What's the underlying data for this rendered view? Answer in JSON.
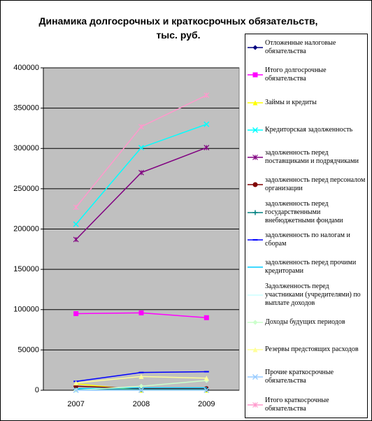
{
  "chart_data": {
    "type": "line",
    "title": "Динамика долгосрочных и краткосрочных обязательств, тыс. руб.",
    "categories": [
      "2007",
      "2008",
      "2009"
    ],
    "ylim": [
      0,
      400000
    ],
    "yticks": [
      0,
      50000,
      100000,
      150000,
      200000,
      250000,
      300000,
      350000,
      400000
    ],
    "grid": true,
    "legend": "right",
    "series": [
      {
        "name": "Отложенные налоговые обязательства",
        "color": "#000080",
        "marker": "diamond",
        "values": [
          500,
          500,
          500
        ]
      },
      {
        "name": "Итого долгосрочные обязательства",
        "color": "#ff00ff",
        "marker": "square",
        "values": [
          95000,
          96000,
          90000
        ]
      },
      {
        "name": "Займы и кредиты",
        "color": "#ffff00",
        "marker": "triangle",
        "values": [
          8000,
          0,
          0
        ]
      },
      {
        "name": "Кредиторская задолженность",
        "color": "#00ffff",
        "marker": "x",
        "values": [
          206000,
          301000,
          330000
        ]
      },
      {
        "name": "задолженность перед поставщиками и подрядчиками",
        "color": "#800080",
        "marker": "star",
        "values": [
          187000,
          270000,
          301000
        ]
      },
      {
        "name": "задолженность перед персоналом организации",
        "color": "#800000",
        "marker": "circle",
        "values": [
          5000,
          2000,
          2000
        ]
      },
      {
        "name": "задолженность перед государственными внебюджетными фондами",
        "color": "#008080",
        "marker": "plus",
        "values": [
          1000,
          1000,
          1000
        ]
      },
      {
        "name": "задолженность по налогам и сборам",
        "color": "#0000ff",
        "marker": "dash",
        "values": [
          11000,
          22000,
          23000
        ]
      },
      {
        "name": "задолженность перед прочими кредиторами",
        "color": "#00ccff",
        "marker": "none",
        "values": [
          2000,
          3000,
          3000
        ]
      },
      {
        "name": "Задолженность перед участниками (учредителями) по выплате доходов",
        "color": "#ccffff",
        "marker": "none",
        "values": [
          0,
          0,
          0
        ]
      },
      {
        "name": "Доходы будущих периодов",
        "color": "#ccffcc",
        "marker": "diamond",
        "values": [
          0,
          5000,
          12000
        ]
      },
      {
        "name": "Резервы предстоящих расходов",
        "color": "#ffff99",
        "marker": "triangle",
        "values": [
          9000,
          17000,
          15000
        ]
      },
      {
        "name": "Прочие краткосрочные обязательства",
        "color": "#99ccff",
        "marker": "x",
        "values": [
          0,
          0,
          0
        ]
      },
      {
        "name": "Итого краткосрочные обязательства",
        "color": "#ff99cc",
        "marker": "star",
        "values": [
          227000,
          327000,
          366000
        ]
      }
    ]
  }
}
